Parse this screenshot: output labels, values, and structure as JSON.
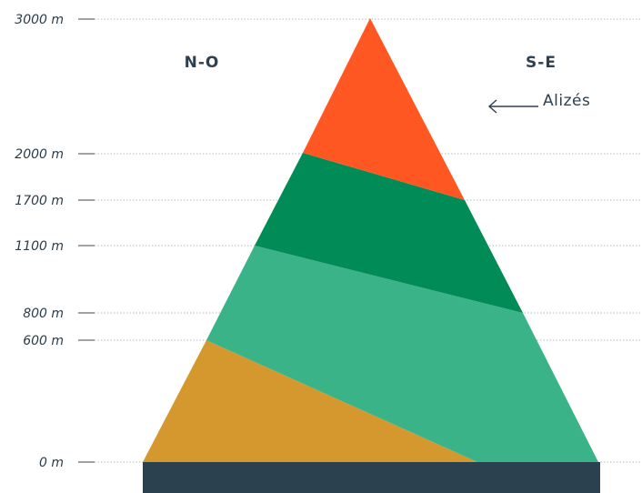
{
  "altitude_ticks": [
    {
      "label": "3000 m",
      "value": 3000
    },
    {
      "label": "2000 m",
      "value": 2000
    },
    {
      "label": "1700 m",
      "value": 1700
    },
    {
      "label": "1100 m",
      "value": 1100
    },
    {
      "label": "800 m",
      "value": 800
    },
    {
      "label": "600 m",
      "value": 600
    },
    {
      "label": "0 m",
      "value": 0
    }
  ],
  "sides": {
    "left": "N-O",
    "right": "S-E"
  },
  "wind": {
    "label": "Alizés",
    "direction": "left"
  },
  "colors": {
    "base": "#2b4150",
    "zone_low": "#d4982e",
    "zone_mid": "#3bb389",
    "zone_high": "#008b57",
    "zone_top": "#ff5722",
    "gridline": "#9aa3aa",
    "text": "#2e3f4f"
  },
  "zones": [
    {
      "name": "zone_low",
      "left_top": 600,
      "right_top": 0
    },
    {
      "name": "zone_mid",
      "left_top": 1100,
      "right_top": 800
    },
    {
      "name": "zone_high",
      "left_top": 2000,
      "right_top": 1700
    },
    {
      "name": "zone_top",
      "left_top": 3000,
      "right_top": 3000
    }
  ]
}
